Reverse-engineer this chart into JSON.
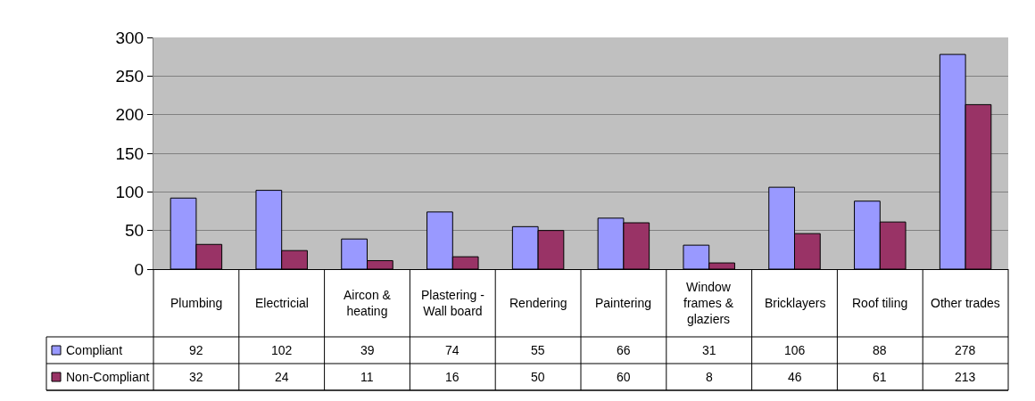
{
  "chart_data": {
    "type": "bar",
    "categories": [
      "Plumbing",
      "Electricial",
      "Aircon & heating",
      "Plastering - Wall board",
      "Rendering",
      "Paintering",
      "Window frames & glaziers",
      "Bricklayers",
      "Roof tiling",
      "Other trades"
    ],
    "series": [
      {
        "name": "Compliant",
        "color": "#9999ff",
        "values": [
          92,
          102,
          39,
          74,
          55,
          66,
          31,
          106,
          88,
          278
        ]
      },
      {
        "name": "Non-Compliant",
        "color": "#993366",
        "values": [
          32,
          24,
          11,
          16,
          50,
          60,
          8,
          46,
          61,
          213
        ]
      }
    ],
    "ylim": [
      0,
      300
    ],
    "yticks": [
      0,
      50,
      100,
      150,
      200,
      250,
      300
    ],
    "grid": "y",
    "data_labels": true,
    "legend": "bottom"
  }
}
